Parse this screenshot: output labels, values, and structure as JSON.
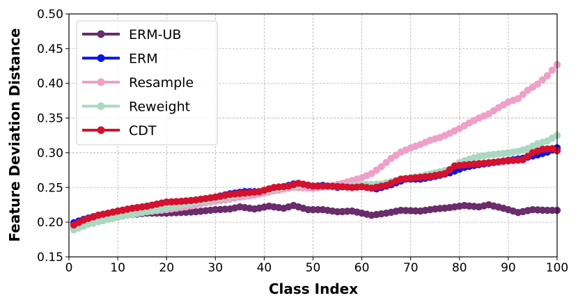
{
  "chart_data": {
    "type": "line",
    "title": "",
    "xlabel": "Class Index",
    "ylabel": "Feature Deviation Distance",
    "xlim": [
      0,
      100
    ],
    "ylim": [
      0.15,
      0.5
    ],
    "xticks": [
      "0",
      "10",
      "20",
      "30",
      "40",
      "50",
      "60",
      "70",
      "80",
      "90",
      "100"
    ],
    "yticks": [
      "0.15",
      "0.20",
      "0.25",
      "0.30",
      "0.35",
      "0.40",
      "0.45",
      "0.50"
    ],
    "grid": true,
    "legend_position": "top-left",
    "x_start": 1,
    "x_end": 100,
    "series": [
      {
        "name": "ERM-UB",
        "color": "#6a2c6b",
        "anchors": [
          [
            1,
            0.191
          ],
          [
            3,
            0.197
          ],
          [
            5,
            0.203
          ],
          [
            8,
            0.207
          ],
          [
            10,
            0.209
          ],
          [
            13,
            0.211
          ],
          [
            16,
            0.213
          ],
          [
            20,
            0.213
          ],
          [
            23,
            0.214
          ],
          [
            26,
            0.215
          ],
          [
            30,
            0.218
          ],
          [
            33,
            0.219
          ],
          [
            35,
            0.222
          ],
          [
            38,
            0.219
          ],
          [
            41,
            0.223
          ],
          [
            44,
            0.22
          ],
          [
            46,
            0.224
          ],
          [
            49,
            0.218
          ],
          [
            52,
            0.218
          ],
          [
            55,
            0.215
          ],
          [
            58,
            0.216
          ],
          [
            60,
            0.213
          ],
          [
            62,
            0.21
          ],
          [
            65,
            0.213
          ],
          [
            68,
            0.217
          ],
          [
            72,
            0.216
          ],
          [
            75,
            0.219
          ],
          [
            78,
            0.221
          ],
          [
            81,
            0.224
          ],
          [
            84,
            0.222
          ],
          [
            86,
            0.225
          ],
          [
            89,
            0.22
          ],
          [
            92,
            0.214
          ],
          [
            95,
            0.218
          ],
          [
            98,
            0.217
          ],
          [
            100,
            0.217
          ]
        ]
      },
      {
        "name": "ERM",
        "color": "#0a14e6",
        "anchors": [
          [
            1,
            0.199
          ],
          [
            3,
            0.204
          ],
          [
            6,
            0.21
          ],
          [
            10,
            0.215
          ],
          [
            13,
            0.218
          ],
          [
            16,
            0.223
          ],
          [
            20,
            0.226
          ],
          [
            24,
            0.229
          ],
          [
            27,
            0.232
          ],
          [
            30,
            0.236
          ],
          [
            33,
            0.241
          ],
          [
            36,
            0.244
          ],
          [
            40,
            0.244
          ],
          [
            43,
            0.249
          ],
          [
            46,
            0.255
          ],
          [
            49,
            0.251
          ],
          [
            52,
            0.253
          ],
          [
            55,
            0.25
          ],
          [
            58,
            0.253
          ],
          [
            60,
            0.252
          ],
          [
            63,
            0.248
          ],
          [
            66,
            0.254
          ],
          [
            69,
            0.262
          ],
          [
            72,
            0.262
          ],
          [
            75,
            0.266
          ],
          [
            78,
            0.271
          ],
          [
            81,
            0.279
          ],
          [
            84,
            0.283
          ],
          [
            87,
            0.286
          ],
          [
            90,
            0.289
          ],
          [
            93,
            0.292
          ],
          [
            96,
            0.297
          ],
          [
            98,
            0.301
          ],
          [
            100,
            0.307
          ]
        ]
      },
      {
        "name": "Resample",
        "color": "#f0a0c8",
        "anchors": [
          [
            1,
            0.193
          ],
          [
            4,
            0.201
          ],
          [
            8,
            0.206
          ],
          [
            12,
            0.211
          ],
          [
            16,
            0.215
          ],
          [
            20,
            0.218
          ],
          [
            24,
            0.222
          ],
          [
            28,
            0.228
          ],
          [
            32,
            0.232
          ],
          [
            35,
            0.236
          ],
          [
            38,
            0.239
          ],
          [
            42,
            0.245
          ],
          [
            46,
            0.25
          ],
          [
            50,
            0.249
          ],
          [
            53,
            0.251
          ],
          [
            56,
            0.256
          ],
          [
            58,
            0.26
          ],
          [
            60,
            0.264
          ],
          [
            62,
            0.27
          ],
          [
            64,
            0.28
          ],
          [
            66,
            0.292
          ],
          [
            68,
            0.301
          ],
          [
            70,
            0.307
          ],
          [
            72,
            0.312
          ],
          [
            74,
            0.318
          ],
          [
            76,
            0.322
          ],
          [
            78,
            0.328
          ],
          [
            80,
            0.335
          ],
          [
            82,
            0.343
          ],
          [
            84,
            0.35
          ],
          [
            86,
            0.356
          ],
          [
            88,
            0.365
          ],
          [
            90,
            0.373
          ],
          [
            92,
            0.378
          ],
          [
            94,
            0.39
          ],
          [
            96,
            0.399
          ],
          [
            98,
            0.411
          ],
          [
            100,
            0.427
          ]
        ]
      },
      {
        "name": "Reweight",
        "color": "#a9d9c0",
        "anchors": [
          [
            1,
            0.189
          ],
          [
            4,
            0.197
          ],
          [
            8,
            0.204
          ],
          [
            12,
            0.21
          ],
          [
            16,
            0.215
          ],
          [
            20,
            0.22
          ],
          [
            24,
            0.226
          ],
          [
            28,
            0.231
          ],
          [
            32,
            0.236
          ],
          [
            36,
            0.241
          ],
          [
            40,
            0.245
          ],
          [
            44,
            0.25
          ],
          [
            48,
            0.254
          ],
          [
            52,
            0.251
          ],
          [
            56,
            0.251
          ],
          [
            60,
            0.254
          ],
          [
            64,
            0.255
          ],
          [
            68,
            0.262
          ],
          [
            72,
            0.266
          ],
          [
            76,
            0.273
          ],
          [
            78,
            0.276
          ],
          [
            80,
            0.286
          ],
          [
            83,
            0.293
          ],
          [
            86,
            0.297
          ],
          [
            89,
            0.299
          ],
          [
            92,
            0.302
          ],
          [
            94,
            0.306
          ],
          [
            96,
            0.313
          ],
          [
            98,
            0.317
          ],
          [
            100,
            0.325
          ]
        ]
      },
      {
        "name": "CDT",
        "color": "#d4112f",
        "anchors": [
          [
            1,
            0.196
          ],
          [
            3,
            0.203
          ],
          [
            6,
            0.21
          ],
          [
            10,
            0.216
          ],
          [
            13,
            0.22
          ],
          [
            16,
            0.223
          ],
          [
            20,
            0.229
          ],
          [
            23,
            0.23
          ],
          [
            26,
            0.232
          ],
          [
            30,
            0.236
          ],
          [
            33,
            0.24
          ],
          [
            36,
            0.242
          ],
          [
            39,
            0.244
          ],
          [
            42,
            0.25
          ],
          [
            45,
            0.252
          ],
          [
            47,
            0.256
          ],
          [
            50,
            0.252
          ],
          [
            53,
            0.252
          ],
          [
            56,
            0.251
          ],
          [
            58,
            0.25
          ],
          [
            60,
            0.251
          ],
          [
            62,
            0.249
          ],
          [
            65,
            0.253
          ],
          [
            68,
            0.262
          ],
          [
            71,
            0.264
          ],
          [
            74,
            0.266
          ],
          [
            77,
            0.27
          ],
          [
            79,
            0.281
          ],
          [
            82,
            0.283
          ],
          [
            85,
            0.285
          ],
          [
            88,
            0.287
          ],
          [
            91,
            0.289
          ],
          [
            93,
            0.29
          ],
          [
            95,
            0.3
          ],
          [
            97,
            0.305
          ],
          [
            99,
            0.306
          ],
          [
            100,
            0.303
          ]
        ]
      }
    ]
  }
}
